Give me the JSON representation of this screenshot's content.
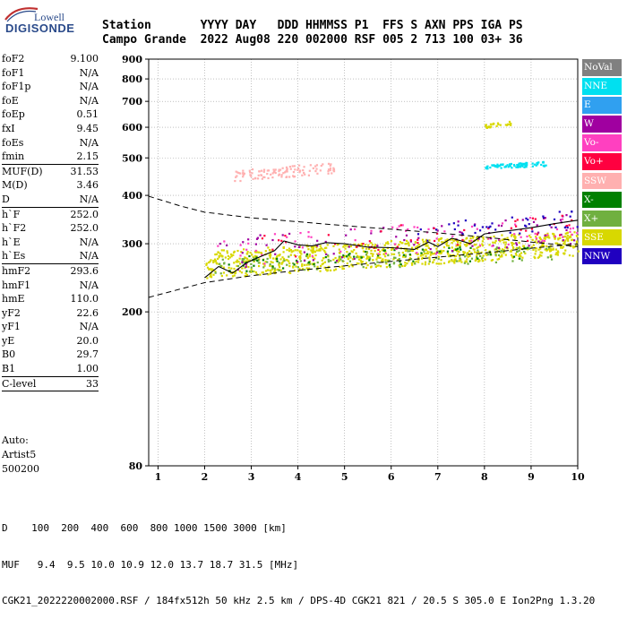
{
  "logo": {
    "top": "Lowell",
    "main": "DIGISONDE"
  },
  "header": {
    "line1": "Station       YYYY DAY   DDD HHMMSS P1  FFS S AXN PPS IGA PS",
    "line2": "Campo Grande  2022 Aug08 220 002000 RSF 005 2 713 100 03+ 36"
  },
  "params": [
    [
      [
        "foF2",
        "9.100"
      ],
      [
        "foF1",
        "N/A"
      ],
      [
        "foF1p",
        "N/A"
      ],
      [
        "foE",
        "N/A"
      ],
      [
        "foEp",
        "0.51"
      ],
      [
        "fxI",
        "9.45"
      ],
      [
        "foEs",
        "N/A"
      ],
      [
        "fmin",
        "2.15"
      ]
    ],
    [
      [
        "MUF(D)",
        "31.53"
      ],
      [
        "M(D)",
        "3.46"
      ],
      [
        "D",
        "N/A"
      ]
    ],
    [
      [
        "h`F",
        "252.0"
      ],
      [
        "h`F2",
        "252.0"
      ],
      [
        "h`E",
        "N/A"
      ],
      [
        "h`Es",
        "N/A"
      ]
    ],
    [
      [
        "hmF2",
        "293.6"
      ],
      [
        "hmF1",
        "N/A"
      ],
      [
        "hmE",
        "110.0"
      ],
      [
        "yF2",
        "22.6"
      ],
      [
        "yF1",
        "N/A"
      ],
      [
        "yE",
        "20.0"
      ],
      [
        "B0",
        "29.7"
      ],
      [
        "B1",
        "1.00"
      ]
    ],
    [
      [
        "C-level",
        "33"
      ]
    ]
  ],
  "auto": [
    "Auto:",
    "Artist5",
    "500200"
  ],
  "bottom": {
    "d_row": "D    100  200  400  600  800 1000 1500 3000 [km]",
    "muf_row": "MUF   9.4  9.5 10.0 10.9 12.0 13.7 18.7 31.5 [MHz]",
    "footer": "CGK21_2022220002000.RSF / 184fx512h 50 kHz 2.5 km / DPS-4D CGK21 821 / 20.5 S 305.0 E Ion2Png 1.3.20"
  },
  "legend": [
    {
      "label": "NoVal",
      "color": "#808080"
    },
    {
      "label": "NNE",
      "color": "#00e0f0"
    },
    {
      "label": "E",
      "color": "#30a0f0"
    },
    {
      "label": "W",
      "color": "#a000a0"
    },
    {
      "label": "Vo-",
      "color": "#ff40c0"
    },
    {
      "label": "Vo+",
      "color": "#ff0040"
    },
    {
      "label": "SSW",
      "color": "#ffb0b0"
    },
    {
      "label": "X-",
      "color": "#008000"
    },
    {
      "label": "X+",
      "color": "#70b040"
    },
    {
      "label": "SSE",
      "color": "#d8d800"
    },
    {
      "label": "NNW",
      "color": "#2000c0"
    }
  ],
  "chart_data": {
    "type": "scatter",
    "xlabel": "",
    "ylabel": "",
    "xlim": [
      0.8,
      10
    ],
    "ylim": [
      80,
      900
    ],
    "yscale": "log",
    "x_ticks": [
      1,
      2,
      3,
      4,
      5,
      6,
      7,
      8,
      9,
      10
    ],
    "y_ticks": [
      80,
      200,
      300,
      400,
      500,
      600,
      700,
      800,
      900
    ],
    "grid": true,
    "trace_profile": {
      "x": [
        2.0,
        2.3,
        2.6,
        2.9,
        3.2,
        3.5,
        3.7,
        4.0,
        4.3,
        4.6,
        5.0,
        5.5,
        6.0,
        6.5,
        6.8,
        7.0,
        7.3,
        7.7,
        8.0,
        8.3,
        8.6,
        9.0,
        9.5,
        10.0
      ],
      "y": [
        245,
        262,
        252,
        268,
        278,
        288,
        305,
        298,
        296,
        302,
        300,
        294,
        293,
        290,
        303,
        295,
        310,
        300,
        318,
        322,
        325,
        330,
        338,
        345
      ]
    },
    "fitted_profile_lower": {
      "x": [
        0.8,
        2.0,
        3.0,
        4.0,
        5.0,
        6.0,
        7.0,
        8.0,
        9.0,
        10.0
      ],
      "y": [
        218,
        238,
        248,
        256,
        263,
        270,
        277,
        284,
        292,
        300
      ]
    },
    "dashed_upper": {
      "x": [
        0.8,
        1.5,
        2.0,
        3.0,
        4.0,
        5.0,
        6.0,
        7.0,
        8.0,
        9.0,
        10.0
      ],
      "y": [
        398,
        375,
        362,
        350,
        342,
        334,
        327,
        320,
        312,
        303,
        295
      ]
    },
    "echo_clusters": [
      {
        "label": "SSE",
        "x": [
          2.0,
          10.0
        ],
        "y": [
          245,
          325
        ],
        "count": 900
      },
      {
        "label": "X+",
        "x": [
          2.2,
          9.5
        ],
        "y": [
          250,
          300
        ],
        "count": 120
      },
      {
        "label": "X-",
        "x": [
          2.5,
          9.0
        ],
        "y": [
          255,
          300
        ],
        "count": 60
      },
      {
        "label": "W",
        "x": [
          2.2,
          10.0
        ],
        "y": [
          255,
          360
        ],
        "count": 90
      },
      {
        "label": "Vo-",
        "x": [
          2.2,
          10.0
        ],
        "y": [
          255,
          360
        ],
        "count": 70
      },
      {
        "label": "Vo+",
        "x": [
          3.0,
          10.0
        ],
        "y": [
          270,
          360
        ],
        "count": 50
      },
      {
        "label": "NNW",
        "x": [
          6.5,
          10.0
        ],
        "y": [
          300,
          370
        ],
        "count": 40
      },
      {
        "label": "NNE",
        "x": [
          8.0,
          9.3
        ],
        "y": [
          468,
          492
        ],
        "count": 80
      },
      {
        "label": "SSW",
        "x": [
          2.6,
          4.8
        ],
        "y": [
          435,
          490
        ],
        "count": 110
      },
      {
        "label": "SSE",
        "x": [
          8.0,
          8.6
        ],
        "y": [
          600,
          625
        ],
        "count": 25
      }
    ]
  }
}
